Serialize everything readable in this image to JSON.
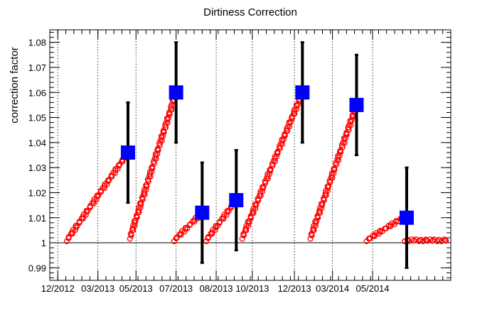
{
  "chart_data": {
    "type": "scatter",
    "title": "Dirtiness Correction",
    "xlabel": "",
    "ylabel": "correction factor",
    "ylim": [
      0.985,
      1.085
    ],
    "xlim": [
      0,
      20
    ],
    "y_ticks": [
      0.99,
      1,
      1.01,
      1.02,
      1.03,
      1.04,
      1.05,
      1.06,
      1.07,
      1.08
    ],
    "y_tick_labels": [
      "0.99",
      "1",
      "1.01",
      "1.02",
      "1.03",
      "1.04",
      "1.05",
      "1.06",
      "1.07",
      "1.08"
    ],
    "x_ticks": [
      0.4,
      2.4,
      4.3,
      6.3,
      8.3,
      10.1,
      12.2,
      14.1,
      16.1
    ],
    "x_tick_labels": [
      "12/2012",
      "03/2013",
      "05/2013",
      "07/2013",
      "08/2013",
      "10/2013",
      "12/2013",
      "03/2014",
      "05/2014"
    ],
    "grid": "vertical-dotted",
    "reference_line": 1,
    "series": [
      {
        "marker": "open-circle",
        "color": "#ff0000",
        "segments": [
          {
            "x": [
              0.85,
              3.9
            ],
            "y": [
              1.001,
              1.036
            ]
          },
          {
            "x": [
              4.0,
              6.3
            ],
            "y": [
              1.002,
              1.06
            ]
          },
          {
            "x": [
              6.2,
              7.6
            ],
            "y": [
              1.001,
              1.012
            ]
          },
          {
            "x": [
              7.8,
              9.3
            ],
            "y": [
              1.001,
              1.017
            ]
          },
          {
            "x": [
              9.6,
              12.6
            ],
            "y": [
              1.002,
              1.06
            ]
          },
          {
            "x": [
              13.0,
              15.3
            ],
            "y": [
              1.002,
              1.055
            ]
          },
          {
            "x": [
              15.8,
              17.6
            ],
            "y": [
              1.001,
              1.01
            ]
          },
          {
            "x": [
              17.7,
              19.8
            ],
            "y": [
              1.001,
              1.001
            ]
          }
        ]
      },
      {
        "marker": "filled-square",
        "color": "#0000ff",
        "error_bar_color": "#000000",
        "x": [
          3.9,
          6.3,
          7.6,
          9.3,
          12.6,
          15.3,
          17.8
        ],
        "y": [
          1.036,
          1.06,
          1.012,
          1.017,
          1.06,
          1.055,
          1.01
        ],
        "yerr": [
          0.02,
          0.02,
          0.02,
          0.02,
          0.02,
          0.02,
          0.02
        ]
      }
    ]
  }
}
